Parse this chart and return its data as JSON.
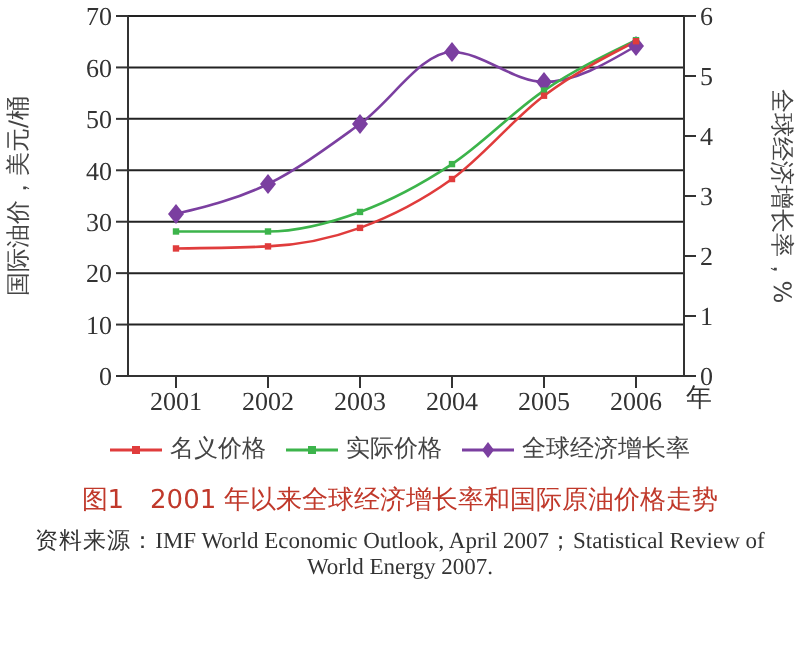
{
  "chart_data": {
    "type": "line",
    "title": "图1　2001 年以来全球经济增长率和国际原油价格走势",
    "xlabel": "年",
    "ylabel": "国际油价，美元/桶",
    "y2label": "全球经济增长率，%",
    "annotations": [
      "资料来源：IMF World Economic Outlook, April 2007；Statistical Review of World Energy 2007."
    ],
    "categories": [
      "2001",
      "2002",
      "2003",
      "2004",
      "2005",
      "2006"
    ],
    "series": [
      {
        "name": "名义价格",
        "color": "#e03c3c",
        "marker": "square",
        "values": [
          24.8,
          25.2,
          28.8,
          38.3,
          54.5,
          65.1
        ]
      },
      {
        "name": "实际价格",
        "color": "#3cb44b",
        "marker": "square",
        "values": [
          28.1,
          28.1,
          31.9,
          41.2,
          55.5,
          65.3
        ]
      },
      {
        "name": "全球经济增长率",
        "color": "#7b3fa0",
        "marker": "diamond",
        "axis": "y2",
        "values": [
          2.7,
          3.2,
          4.2,
          5.4,
          4.9,
          5.5
        ]
      }
    ],
    "ylim": [
      0,
      70
    ],
    "yticks": [
      0,
      10,
      20,
      30,
      40,
      50,
      60,
      70
    ],
    "y2lim": [
      0,
      6
    ],
    "y2ticks": [
      0,
      1,
      2,
      3,
      4,
      5,
      6
    ],
    "grid": "y",
    "legend": "bottom"
  }
}
